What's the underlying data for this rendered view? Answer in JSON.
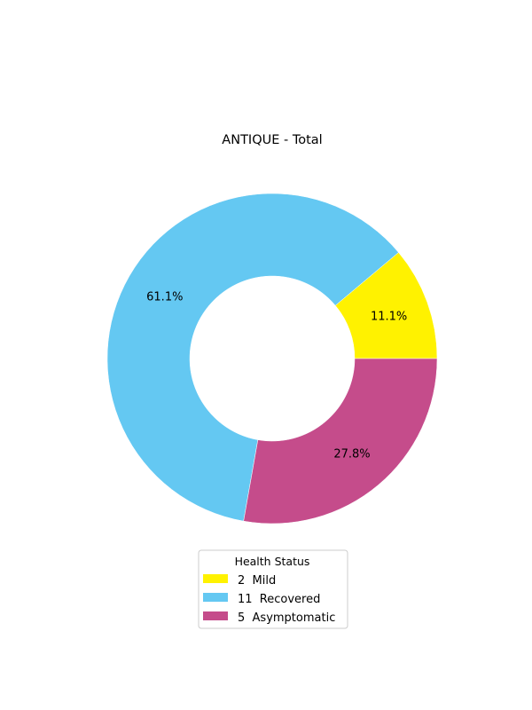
{
  "chart_data": {
    "type": "pie",
    "title": "ANTIQUE - Total",
    "legend_title": "Health Status",
    "legend_position": "bottom-center",
    "donut": true,
    "slices": [
      {
        "label": "Mild",
        "count": 2,
        "percent_label": "11.1%",
        "color": "#fff200"
      },
      {
        "label": "Recovered",
        "count": 11,
        "percent_label": "61.1%",
        "color": "#64c8f2"
      },
      {
        "label": "Asymptomatic",
        "count": 5,
        "percent_label": "27.8%",
        "color": "#c54c8b"
      }
    ],
    "legend_entries": [
      {
        "count": "2",
        "label": "Mild"
      },
      {
        "count": "11",
        "label": "Recovered"
      },
      {
        "count": "5",
        "label": "Asymptomatic"
      }
    ]
  }
}
